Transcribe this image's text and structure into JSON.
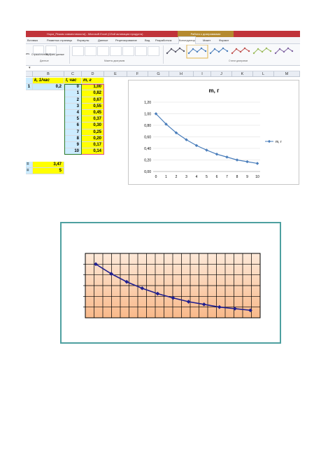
{
  "excel": {
    "title": "Норм_Режим совместимости] - Microsoft Excel (Сбой активации продукта)",
    "context_tab_group": "Работа с диаграммами",
    "tabs": [
      "Вставка",
      "Разметка страницы",
      "Формулы",
      "Данные",
      "Рецензирование",
      "Вид",
      "Разработчик",
      "Конструктор",
      "Макет",
      "Формат"
    ],
    "active_tab": "Конструктор",
    "ribbon": {
      "btn_switch": "Строка/столбец",
      "btn_select": "Выбрать данные",
      "group_data": "Данные",
      "group_layouts": "Макеты диаграмм",
      "group_styles": "Стили диаграмм",
      "left_cut": "ить"
    },
    "name_box_arrow": "▾",
    "columns": [
      "B",
      "C",
      "D",
      "E",
      "F",
      "G",
      "H",
      "I",
      "J",
      "K",
      "L",
      "M"
    ],
    "table": {
      "header_k": "k, 1/час",
      "header_t": "t, час",
      "header_m": "m, г",
      "row_label": "1",
      "k_value": "0,2",
      "t": [
        "0",
        "1",
        "2",
        "3",
        "4",
        "5",
        "6",
        "7",
        "8",
        "9",
        "10"
      ],
      "m": [
        "1,00",
        "0,82",
        "0,67",
        "0,55",
        "0,45",
        "0,37",
        "0,30",
        "0,25",
        "0,20",
        "0,17",
        "0,14"
      ]
    },
    "summary": [
      {
        "label": "=",
        "value": "3,47"
      },
      {
        "label": "=",
        "value": "5"
      }
    ]
  },
  "colors": {
    "title_bar": "#c0333a",
    "context_tab": "#b58a2e",
    "series1": "#4a7ebb",
    "series2": "#1f1f8f",
    "plot2_top": "#fde9d9",
    "plot2_bottom": "#f9b98a"
  },
  "chart_data": [
    {
      "type": "line",
      "title": "m, г",
      "x": [
        0,
        1,
        2,
        3,
        4,
        5,
        6,
        7,
        8,
        9,
        10
      ],
      "series": [
        {
          "name": "m, г",
          "values": [
            1.0,
            0.82,
            0.67,
            0.55,
            0.45,
            0.37,
            0.3,
            0.25,
            0.2,
            0.17,
            0.14
          ]
        }
      ],
      "ylim": [
        0,
        1.2
      ],
      "yticks": [
        "0,00",
        "0,20",
        "0,40",
        "0,60",
        "0,80",
        "1,00",
        "1,20"
      ],
      "xticks": [
        "0",
        "1",
        "2",
        "3",
        "4",
        "5",
        "6",
        "7",
        "8",
        "9",
        "10"
      ],
      "grid": true,
      "legend": "right"
    },
    {
      "type": "line",
      "x": [
        0,
        1,
        2,
        3,
        4,
        5,
        6,
        7,
        8,
        9,
        10
      ],
      "series": [
        {
          "values": [
            1.0,
            0.82,
            0.67,
            0.55,
            0.45,
            0.37,
            0.3,
            0.25,
            0.2,
            0.17,
            0.14
          ]
        }
      ],
      "ylim": [
        0,
        1.2
      ],
      "grid": true,
      "legend": "none"
    }
  ]
}
